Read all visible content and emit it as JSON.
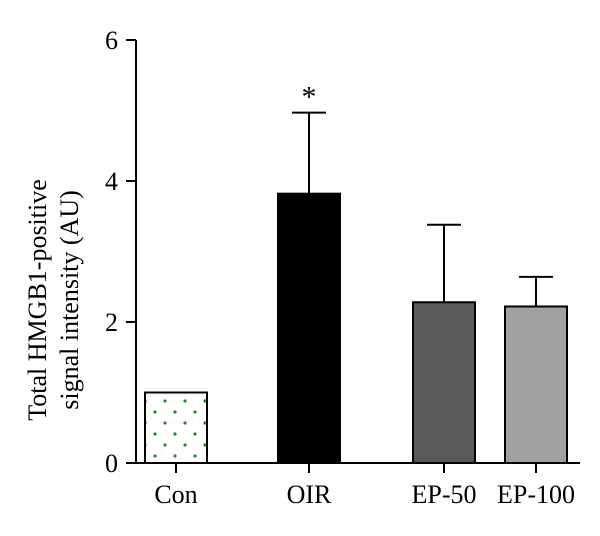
{
  "chart_data": {
    "type": "bar",
    "title": "",
    "xlabel": "",
    "ylabel_lines": [
      "Total HMGB1-positive",
      "signal intensity (AU)"
    ],
    "categories": [
      "Con",
      "OIR",
      "EP-50",
      "EP-100"
    ],
    "values": [
      1.0,
      3.82,
      2.28,
      2.22
    ],
    "error_upper": [
      0.0,
      1.15,
      1.1,
      0.42
    ],
    "significance": [
      "",
      "*",
      "",
      ""
    ],
    "ylim": [
      0,
      6
    ],
    "yticks": [
      "0",
      "2",
      "4",
      "6"
    ],
    "grid": false,
    "bar_colors": [
      "#ffffff",
      "#000000",
      "#5a5a5a",
      "#a0a0a0"
    ],
    "bar_patterns": [
      "dots",
      "solid",
      "solid",
      "solid"
    ],
    "dot_color": "#2e7d32"
  }
}
